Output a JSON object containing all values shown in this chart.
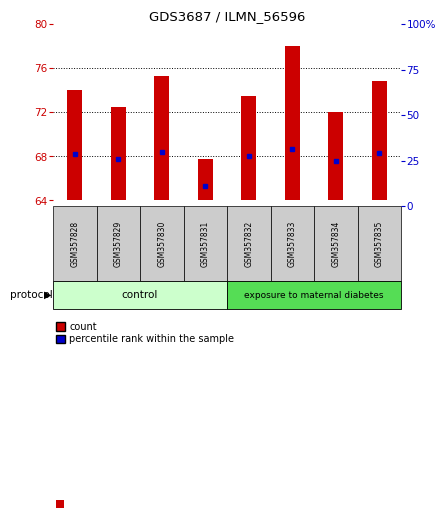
{
  "title": "GDS3687 / ILMN_56596",
  "samples": [
    "GSM357828",
    "GSM357829",
    "GSM357830",
    "GSM357831",
    "GSM357832",
    "GSM357833",
    "GSM357834",
    "GSM357835"
  ],
  "bar_bottoms": [
    64,
    64,
    64,
    64,
    64,
    64,
    64,
    64
  ],
  "bar_tops": [
    74.0,
    72.5,
    75.3,
    67.8,
    73.5,
    78.0,
    72.0,
    74.8
  ],
  "percentile_values": [
    68.2,
    67.8,
    68.4,
    65.3,
    68.0,
    68.7,
    67.6,
    68.3
  ],
  "ylim_left": [
    63.5,
    80
  ],
  "ylim_right": [
    0,
    100
  ],
  "yticks_left": [
    64,
    68,
    72,
    76,
    80
  ],
  "yticks_right": [
    0,
    25,
    50,
    75,
    100
  ],
  "ytick_labels_right": [
    "0",
    "25",
    "50",
    "75",
    "100%"
  ],
  "bar_color": "#cc0000",
  "percentile_color": "#0000cc",
  "control_group_count": 4,
  "diabetes_group_count": 4,
  "control_label": "control",
  "diabetes_label": "exposure to maternal diabetes",
  "protocol_label": "protocol",
  "legend_count_label": "count",
  "legend_pct_label": "percentile rank within the sample",
  "control_bg": "#ccffcc",
  "diabetes_bg": "#55dd55",
  "tick_label_bg": "#cccccc",
  "bar_width": 0.35
}
